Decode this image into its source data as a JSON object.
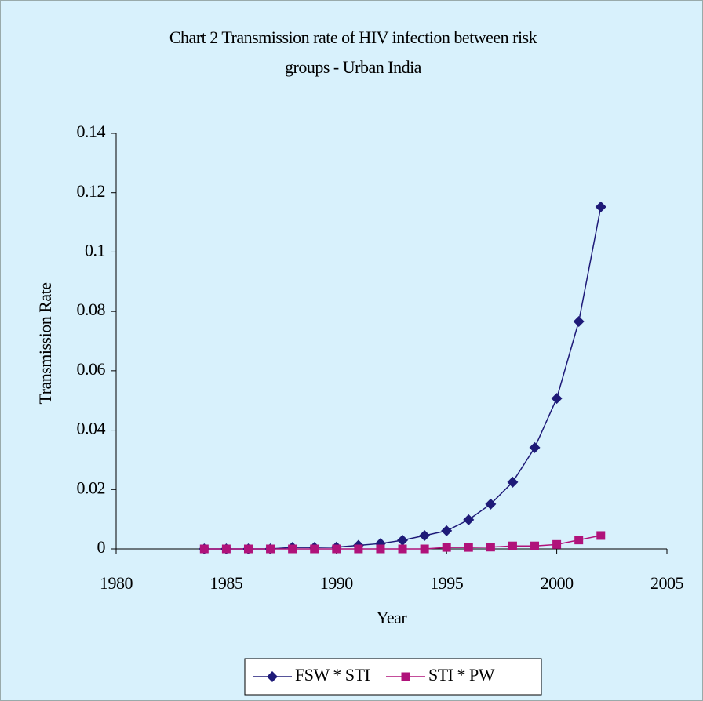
{
  "chart_data": {
    "type": "line",
    "title": [
      "Chart 2 Transmission rate of HIV infection between risk",
      "groups - Urban India"
    ],
    "x_label": "Year",
    "y_label": "Transmission Rate",
    "x": [
      1984,
      1985,
      1986,
      1987,
      1988,
      1989,
      1990,
      1991,
      1992,
      1993,
      1994,
      1995,
      1996,
      1997,
      1998,
      1999,
      2000,
      2001,
      2002
    ],
    "series": [
      {
        "name": "FSW * STI",
        "color": "#1e1a78",
        "marker": "diamond",
        "values": [
          0,
          0,
          0,
          0,
          0.0005,
          0.0005,
          0.0006,
          0.0012,
          0.0018,
          0.0029,
          0.0045,
          0.0061,
          0.0098,
          0.0151,
          0.0225,
          0.0341,
          0.0507,
          0.0766,
          0.1152
        ]
      },
      {
        "name": "STI * PW",
        "color": "#b0127a",
        "marker": "square",
        "values": [
          0,
          0,
          0,
          0,
          0,
          0,
          0,
          0,
          0,
          0,
          0,
          0.0005,
          0.0005,
          0.0006,
          0.001,
          0.001,
          0.0015,
          0.003,
          0.0045
        ]
      }
    ],
    "xlim": [
      1980,
      2005
    ],
    "xticks": [
      1980,
      1985,
      1990,
      1995,
      2000,
      2005
    ],
    "ylim": [
      0,
      0.14
    ],
    "yticks": [
      0,
      0.02,
      0.04,
      0.06,
      0.08,
      0.1,
      0.12,
      0.14
    ],
    "grid": false,
    "legend": "bottom"
  }
}
